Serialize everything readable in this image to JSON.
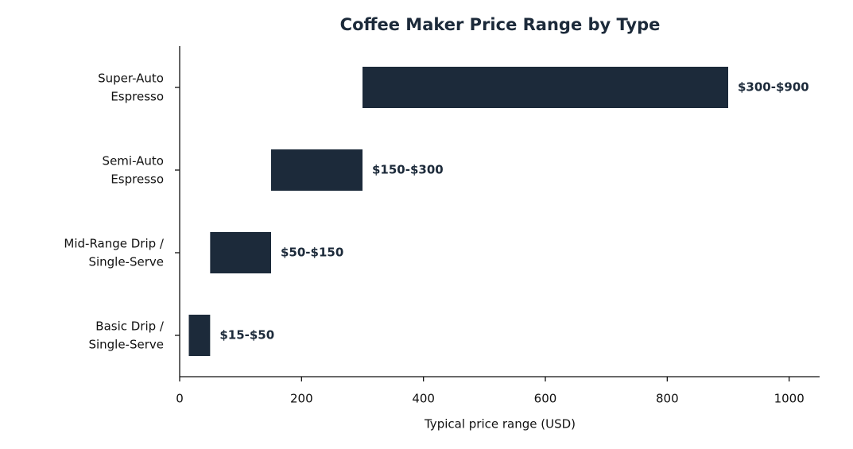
{
  "chart_data": {
    "type": "range-bar",
    "orientation": "horizontal",
    "title": "Coffee Maker Price Range by Type",
    "xlabel": "Typical price range (USD)",
    "categories": [
      [
        "Basic Drip /",
        "Single-Serve"
      ],
      [
        "Mid-Range Drip /",
        "Single-Serve"
      ],
      [
        "Semi-Auto",
        "Espresso"
      ],
      [
        "Super-Auto",
        "Espresso"
      ]
    ],
    "values": [
      [
        15,
        50
      ],
      [
        50,
        150
      ],
      [
        150,
        300
      ],
      [
        300,
        900
      ]
    ],
    "value_labels": [
      "$15-$50",
      "$50-$150",
      "$150-$300",
      "$300-$900"
    ],
    "color": "#1c2a3a",
    "xlim": [
      0,
      1050
    ],
    "xticks": [
      0,
      200,
      400,
      600,
      800,
      1000
    ],
    "grid": false
  }
}
